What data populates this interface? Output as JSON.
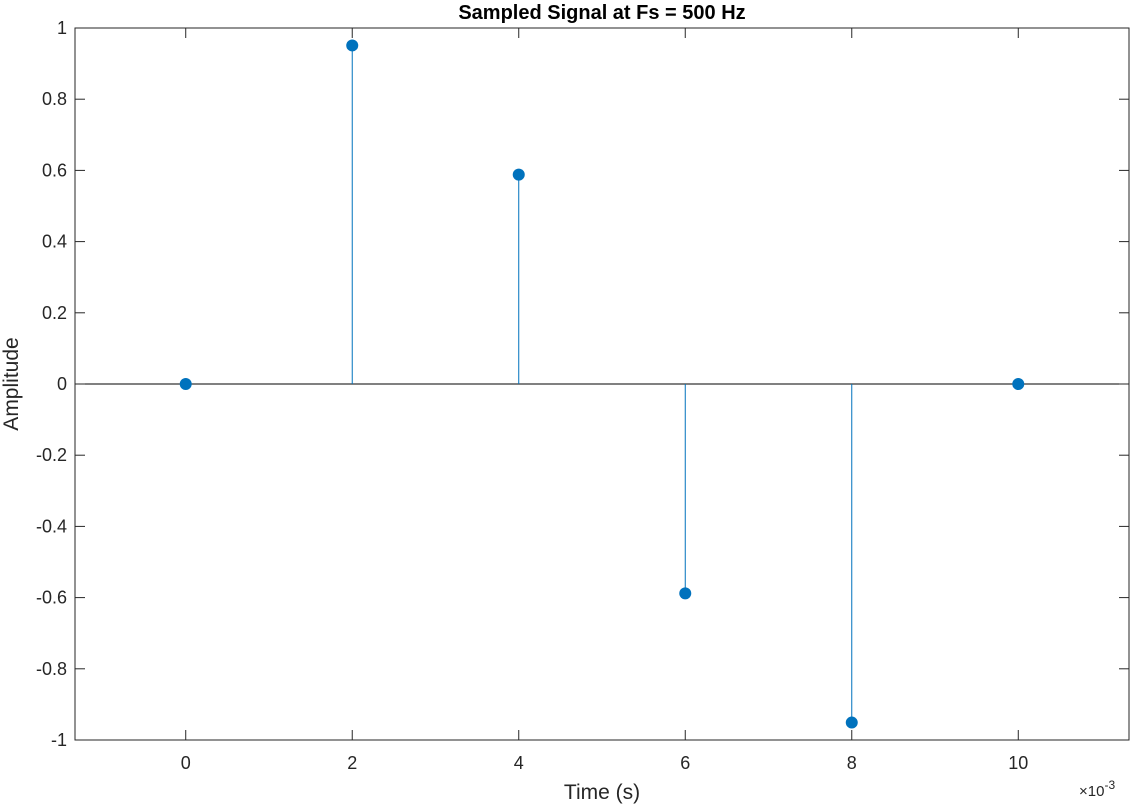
{
  "chart_data": {
    "type": "stem",
    "title": "Sampled Signal at Fs = 500 Hz",
    "xlabel": "Time (s)",
    "ylabel": "Amplitude",
    "x_exponent_label": "×10",
    "x_exponent_power": "-3",
    "xlim": [
      -0.00133,
      0.01133
    ],
    "ylim": [
      -1,
      1
    ],
    "x_ticks": [
      0,
      0.002,
      0.004,
      0.006,
      0.008,
      0.01
    ],
    "x_tick_labels": [
      "0",
      "2",
      "4",
      "6",
      "8",
      "10"
    ],
    "y_ticks": [
      1,
      0.8,
      0.6,
      0.4,
      0.2,
      0,
      -0.2,
      -0.4,
      -0.6,
      -0.8,
      -1
    ],
    "y_tick_labels": [
      "1",
      "0.8",
      "0.6",
      "0.4",
      "0.2",
      "0",
      "-0.2",
      "-0.4",
      "-0.6",
      "-0.8",
      "-1"
    ],
    "grid": false,
    "baseline": 0,
    "series": [
      {
        "color": "#0072BD",
        "x": [
          0,
          0.002,
          0.004,
          0.006,
          0.008,
          0.01
        ],
        "y": [
          0,
          0.951,
          0.588,
          -0.588,
          -0.951,
          0
        ]
      }
    ]
  }
}
